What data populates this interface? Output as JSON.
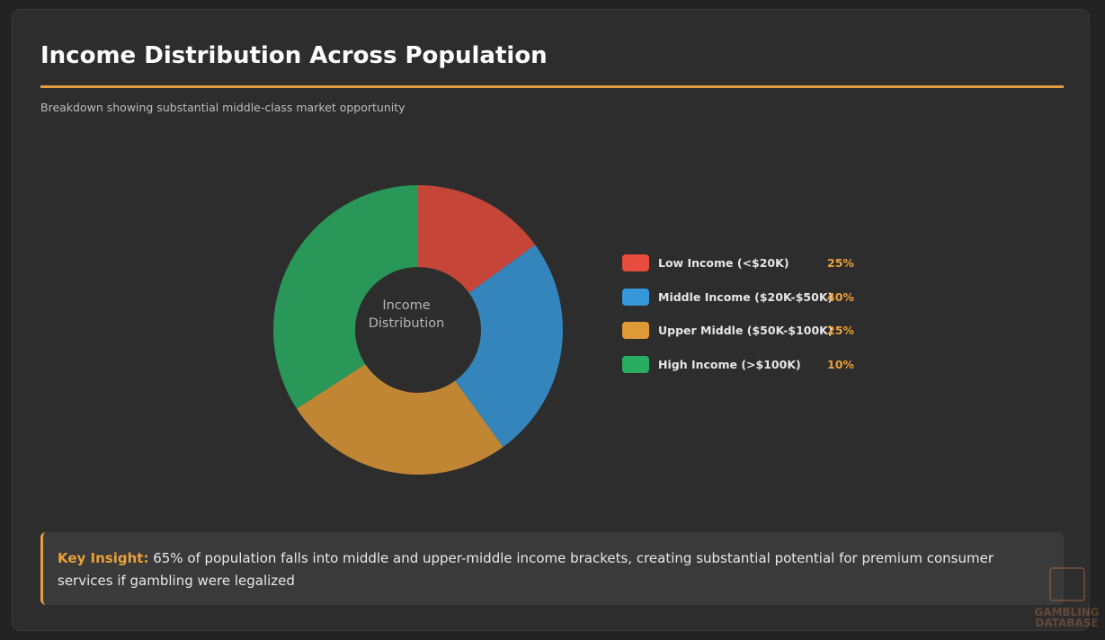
{
  "header": {
    "title": "Income Distribution Across Population",
    "subtitle": "Breakdown showing substantial middle-class market opportunity"
  },
  "chart_data": {
    "type": "pie",
    "variant": "donut",
    "center_label": [
      "Income",
      "Distribution"
    ],
    "categories": [
      "Low Income (<$20K)",
      "Middle Income ($20K-$50K)",
      "Upper Middle ($50K-$100K)",
      "High Income (>$100K)"
    ],
    "values": [
      25,
      40,
      25,
      10
    ],
    "value_labels": [
      "25%",
      "40%",
      "25%",
      "10%"
    ],
    "colors": [
      "#e74c3c",
      "#3498db",
      "#e09a35",
      "#27ae60"
    ],
    "legend_position": "right"
  },
  "insight": {
    "label": "Key Insight:",
    "text": " 65% of population falls into middle and upper-middle income brackets, creating substantial potential for premium consumer services if gambling were legalized"
  },
  "watermark": {
    "text": [
      "GAMBLING",
      "DATABASE"
    ]
  }
}
